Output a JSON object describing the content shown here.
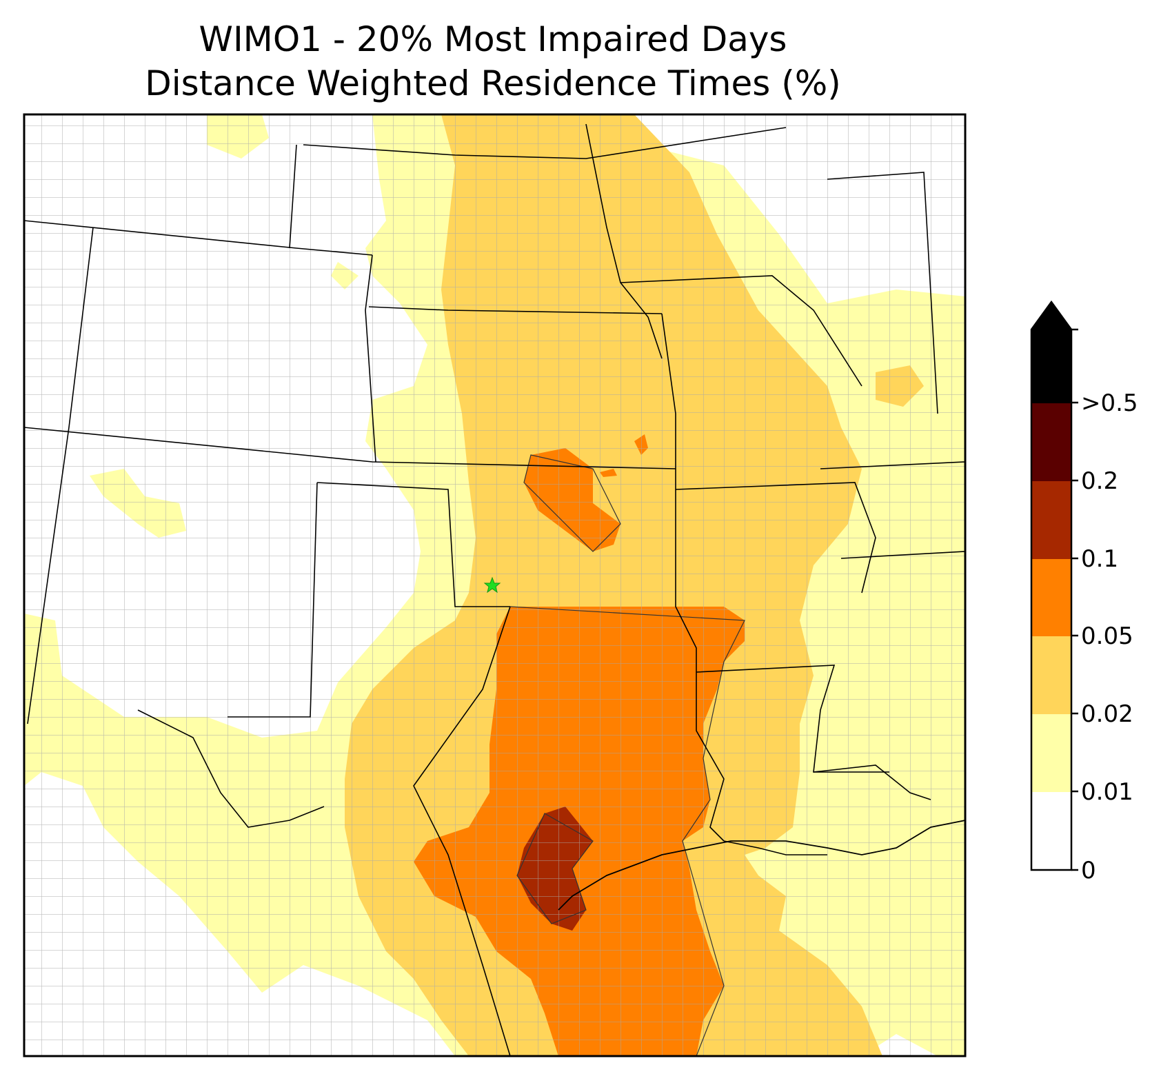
{
  "title_line1": "WIMO1 - 20% Most Impaired Days",
  "title_line2": "Distance Weighted Residence Times (%)",
  "colorbar": {
    "labels": [
      "0",
      "0.01",
      "0.02",
      "0.05",
      "0.1",
      "0.2",
      ">0.5"
    ],
    "colors": [
      "#ffffff",
      "#ffffa8",
      "#ffd55a",
      "#ff8000",
      "#a62800",
      "#5a0000",
      "#000000"
    ],
    "extend": "max"
  },
  "site_marker": {
    "name": "WIMO1",
    "color": "#22dd22",
    "shape": "star"
  },
  "legend_placement": "right"
}
